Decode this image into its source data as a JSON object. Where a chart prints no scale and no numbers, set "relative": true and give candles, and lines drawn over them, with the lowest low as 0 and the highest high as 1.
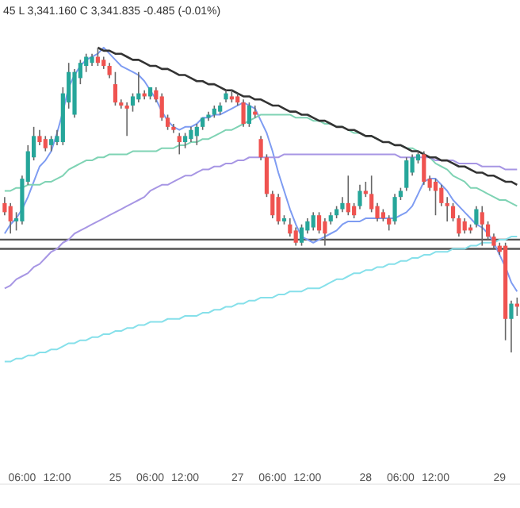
{
  "chart_data": {
    "type": "candlestick",
    "relative": true,
    "grid": false,
    "tick_labels": "x",
    "annotations": [
      "45 L 3,341.160 C 3,341.835 -0.485 (-0.01%)"
    ],
    "categories": [
      null,
      null,
      null,
      "06:00",
      null,
      null,
      null,
      null,
      null,
      "12:00",
      null,
      null,
      null,
      null,
      null,
      null,
      null,
      null,
      null,
      "25",
      null,
      null,
      null,
      null,
      null,
      "06:00",
      null,
      null,
      null,
      null,
      null,
      "12:00",
      null,
      null,
      null,
      null,
      null,
      null,
      null,
      null,
      "27",
      null,
      null,
      null,
      null,
      null,
      "06:00",
      null,
      null,
      null,
      null,
      null,
      "12:00",
      null,
      null,
      null,
      null,
      null,
      null,
      null,
      null,
      null,
      "28",
      null,
      null,
      null,
      null,
      null,
      "06:00",
      null,
      null,
      null,
      null,
      null,
      "12:00",
      null,
      null,
      null,
      null,
      null,
      null,
      null,
      null,
      null,
      null,
      "29",
      null,
      null,
      null
    ],
    "ohlc": [
      [
        0.49,
        0.51,
        0.45,
        0.46
      ],
      [
        0.48,
        0.49,
        0.39,
        0.43
      ],
      [
        0.43,
        0.46,
        0.4,
        0.44
      ],
      [
        0.43,
        0.58,
        0.42,
        0.57
      ],
      [
        0.56,
        0.68,
        0.55,
        0.66
      ],
      [
        0.64,
        0.74,
        0.63,
        0.71
      ],
      [
        0.71,
        0.73,
        0.68,
        0.69
      ],
      [
        0.7,
        0.71,
        0.66,
        0.67
      ],
      [
        0.68,
        0.71,
        0.66,
        0.7
      ],
      [
        0.69,
        0.73,
        0.68,
        0.71
      ],
      [
        0.69,
        0.87,
        0.68,
        0.85
      ],
      [
        0.82,
        0.95,
        0.8,
        0.92
      ],
      [
        0.78,
        0.93,
        0.77,
        0.92
      ],
      [
        0.9,
        0.96,
        0.88,
        0.95
      ],
      [
        0.94,
        0.98,
        0.92,
        0.97
      ],
      [
        0.95,
        0.98,
        0.94,
        0.97
      ],
      [
        0.97,
        1.0,
        0.94,
        0.95
      ],
      [
        0.96,
        0.97,
        0.93,
        0.94
      ],
      [
        0.94,
        0.95,
        0.9,
        0.91
      ],
      [
        0.88,
        0.92,
        0.81,
        0.82
      ],
      [
        0.82,
        0.83,
        0.8,
        0.81
      ],
      [
        0.81,
        0.82,
        0.71,
        0.8
      ],
      [
        0.81,
        0.85,
        0.79,
        0.84
      ],
      [
        0.83,
        0.92,
        0.82,
        0.85
      ],
      [
        0.85,
        0.86,
        0.83,
        0.84
      ],
      [
        0.84,
        0.87,
        0.83,
        0.87
      ],
      [
        0.86,
        0.87,
        0.82,
        0.83
      ],
      [
        0.84,
        0.85,
        0.76,
        0.77
      ],
      [
        0.77,
        0.78,
        0.73,
        0.74
      ],
      [
        0.74,
        0.75,
        0.72,
        0.73
      ],
      [
        0.71,
        0.72,
        0.65,
        0.69
      ],
      [
        0.69,
        0.72,
        0.67,
        0.71
      ],
      [
        0.7,
        0.74,
        0.69,
        0.73
      ],
      [
        0.71,
        0.75,
        0.68,
        0.74
      ],
      [
        0.74,
        0.77,
        0.73,
        0.77
      ],
      [
        0.77,
        0.79,
        0.76,
        0.78
      ],
      [
        0.78,
        0.81,
        0.77,
        0.8
      ],
      [
        0.79,
        0.82,
        0.78,
        0.81
      ],
      [
        0.83,
        0.86,
        0.82,
        0.85
      ],
      [
        0.84,
        0.86,
        0.82,
        0.83
      ],
      [
        0.84,
        0.85,
        0.81,
        0.82
      ],
      [
        0.82,
        0.83,
        0.74,
        0.75
      ],
      [
        0.75,
        0.82,
        0.74,
        0.81
      ],
      [
        0.79,
        0.81,
        0.77,
        0.78
      ],
      [
        0.7,
        0.71,
        0.63,
        0.64
      ],
      [
        0.64,
        0.65,
        0.51,
        0.52
      ],
      [
        0.52,
        0.53,
        0.44,
        0.45
      ],
      [
        0.51,
        0.52,
        0.42,
        0.43
      ],
      [
        0.43,
        0.45,
        0.42,
        0.44
      ],
      [
        0.42,
        0.44,
        0.38,
        0.39
      ],
      [
        0.4,
        0.41,
        0.35,
        0.36
      ],
      [
        0.36,
        0.42,
        0.35,
        0.41
      ],
      [
        0.4,
        0.44,
        0.39,
        0.43
      ],
      [
        0.41,
        0.46,
        0.4,
        0.45
      ],
      [
        0.45,
        0.46,
        0.39,
        0.4
      ],
      [
        0.43,
        0.44,
        0.35,
        0.39
      ],
      [
        0.43,
        0.46,
        0.42,
        0.45
      ],
      [
        0.45,
        0.48,
        0.44,
        0.47
      ],
      [
        0.47,
        0.51,
        0.46,
        0.49
      ],
      [
        0.49,
        0.58,
        0.45,
        0.46
      ],
      [
        0.48,
        0.49,
        0.44,
        0.45
      ],
      [
        0.48,
        0.55,
        0.47,
        0.53
      ],
      [
        0.53,
        0.56,
        0.51,
        0.52
      ],
      [
        0.52,
        0.58,
        0.46,
        0.47
      ],
      [
        0.48,
        0.49,
        0.43,
        0.44
      ],
      [
        0.46,
        0.47,
        0.43,
        0.44
      ],
      [
        0.44,
        0.45,
        0.4,
        0.42
      ],
      [
        0.43,
        0.52,
        0.42,
        0.51
      ],
      [
        0.51,
        0.54,
        0.5,
        0.53
      ],
      [
        0.54,
        0.64,
        0.53,
        0.63
      ],
      [
        0.59,
        0.65,
        0.58,
        0.64
      ],
      [
        0.63,
        0.66,
        0.62,
        0.65
      ],
      [
        0.65,
        0.66,
        0.55,
        0.56
      ],
      [
        0.57,
        0.58,
        0.53,
        0.54
      ],
      [
        0.56,
        0.57,
        0.45,
        0.53
      ],
      [
        0.54,
        0.55,
        0.48,
        0.49
      ],
      [
        0.49,
        0.51,
        0.43,
        0.48
      ],
      [
        0.48,
        0.49,
        0.43,
        0.44
      ],
      [
        0.44,
        0.45,
        0.38,
        0.39
      ],
      [
        0.43,
        0.44,
        0.39,
        0.4
      ],
      [
        0.41,
        0.42,
        0.39,
        0.4
      ],
      [
        0.42,
        0.48,
        0.41,
        0.47
      ],
      [
        0.46,
        0.48,
        0.35,
        0.42
      ],
      [
        0.42,
        0.43,
        0.37,
        0.38
      ],
      [
        0.38,
        0.39,
        0.34,
        0.35
      ],
      [
        0.35,
        0.36,
        0.32,
        0.33
      ],
      [
        0.35,
        0.36,
        0.04,
        0.11
      ],
      [
        0.11,
        0.17,
        0.0,
        0.16
      ],
      [
        0.16,
        0.18,
        0.12,
        0.15
      ]
    ],
    "colors": [
      "#ef5350",
      "#ef5350",
      "#26a69a",
      "#26a69a",
      "#26a69a",
      "#26a69a",
      "#ef5350",
      "#ef5350",
      "#26a69a",
      "#26a69a",
      "#26a69a",
      "#26a69a",
      "#26a69a",
      "#26a69a",
      "#26a69a",
      "#26a69a",
      "#ef5350",
      "#ef5350",
      "#ef5350",
      "#ef5350",
      "#ef5350",
      "#ef5350",
      "#26a69a",
      "#26a69a",
      "#ef5350",
      "#26a69a",
      "#ef5350",
      "#ef5350",
      "#ef5350",
      "#ef5350",
      "#ef5350",
      "#26a69a",
      "#26a69a",
      "#26a69a",
      "#26a69a",
      "#26a69a",
      "#26a69a",
      "#26a69a",
      "#26a69a",
      "#ef5350",
      "#ef5350",
      "#ef5350",
      "#26a69a",
      "#ef5350",
      "#ef5350",
      "#ef5350",
      "#ef5350",
      "#ef5350",
      "#26a69a",
      "#ef5350",
      "#ef5350",
      "#26a69a",
      "#26a69a",
      "#26a69a",
      "#ef5350",
      "#ef5350",
      "#26a69a",
      "#26a69a",
      "#26a69a",
      "#ef5350",
      "#ef5350",
      "#26a69a",
      "#ef5350",
      "#ef5350",
      "#ef5350",
      "#ef5350",
      "#ef5350",
      "#26a69a",
      "#26a69a",
      "#26a69a",
      "#26a69a",
      "#26a69a",
      "#ef5350",
      "#ef5350",
      "#ef5350",
      "#ef5350",
      "#ef5350",
      "#ef5350",
      "#ef5350",
      "#ef5350",
      "#ef5350",
      "#26a69a",
      "#ef5350",
      "#ef5350",
      "#ef5350",
      "#ef5350",
      "#ef5350",
      "#26a69a",
      "#ef5350"
    ],
    "series": [
      {
        "type": "line",
        "color": "#7e9cf2",
        "values": [
          0.39,
          0.42,
          0.44,
          0.47,
          0.51,
          0.56,
          0.61,
          0.63,
          0.66,
          0.72,
          0.79,
          0.87,
          0.91,
          0.94,
          0.96,
          0.97,
          0.98,
          1.0,
          0.98,
          0.96,
          0.94,
          0.93,
          0.92,
          0.91,
          0.89,
          0.86,
          0.83,
          0.79,
          0.76,
          0.74,
          0.73,
          0.74,
          0.74,
          0.75,
          0.77,
          0.77,
          0.78,
          0.78,
          0.79,
          0.8,
          0.81,
          0.82,
          0.81,
          0.8,
          0.76,
          0.72,
          0.66,
          0.59,
          0.53,
          0.47,
          0.42,
          0.38,
          0.37,
          0.36,
          0.37,
          0.38,
          0.39,
          0.4,
          0.42,
          0.43,
          0.43,
          0.43,
          0.44,
          0.44,
          0.44,
          0.44,
          0.44,
          0.44,
          0.45,
          0.46,
          0.48,
          0.52,
          0.56,
          0.57,
          0.57,
          0.55,
          0.53,
          0.5,
          0.48,
          0.46,
          0.44,
          0.42,
          0.41,
          0.39,
          0.36,
          0.32,
          0.28,
          0.23,
          0.2
        ]
      },
      {
        "type": "line",
        "color": "#7fd3b4",
        "values": [
          0.53,
          0.53,
          0.54,
          0.54,
          0.55,
          0.55,
          0.55,
          0.56,
          0.56,
          0.57,
          0.58,
          0.6,
          0.61,
          0.62,
          0.63,
          0.63,
          0.64,
          0.64,
          0.65,
          0.65,
          0.65,
          0.65,
          0.66,
          0.66,
          0.66,
          0.66,
          0.66,
          0.67,
          0.67,
          0.67,
          0.68,
          0.68,
          0.69,
          0.69,
          0.7,
          0.7,
          0.71,
          0.72,
          0.73,
          0.73,
          0.74,
          0.75,
          0.76,
          0.77,
          0.78,
          0.78,
          0.78,
          0.78,
          0.78,
          0.78,
          0.77,
          0.77,
          0.77,
          0.76,
          0.76,
          0.75,
          0.75,
          0.74,
          0.74,
          0.73,
          0.72,
          0.72,
          0.71,
          0.71,
          0.7,
          0.69,
          0.69,
          0.68,
          0.68,
          0.67,
          0.67,
          0.66,
          0.65,
          0.64,
          0.62,
          0.61,
          0.6,
          0.58,
          0.57,
          0.56,
          0.54,
          0.54,
          0.53,
          0.52,
          0.51,
          0.5,
          0.5,
          0.49,
          0.48
        ]
      },
      {
        "type": "line",
        "color": "#a796e4",
        "values": [
          0.21,
          0.22,
          0.24,
          0.25,
          0.26,
          0.28,
          0.29,
          0.31,
          0.33,
          0.34,
          0.36,
          0.37,
          0.39,
          0.4,
          0.41,
          0.42,
          0.43,
          0.44,
          0.45,
          0.46,
          0.47,
          0.48,
          0.49,
          0.5,
          0.51,
          0.53,
          0.54,
          0.55,
          0.55,
          0.56,
          0.57,
          0.58,
          0.58,
          0.59,
          0.6,
          0.6,
          0.61,
          0.61,
          0.62,
          0.62,
          0.63,
          0.63,
          0.64,
          0.64,
          0.64,
          0.64,
          0.64,
          0.64,
          0.65,
          0.65,
          0.65,
          0.65,
          0.65,
          0.65,
          0.65,
          0.65,
          0.65,
          0.65,
          0.65,
          0.65,
          0.65,
          0.65,
          0.65,
          0.65,
          0.65,
          0.65,
          0.65,
          0.65,
          0.64,
          0.64,
          0.64,
          0.64,
          0.64,
          0.64,
          0.63,
          0.63,
          0.63,
          0.63,
          0.62,
          0.62,
          0.62,
          0.62,
          0.61,
          0.61,
          0.61,
          0.61,
          0.6,
          0.6,
          0.6
        ]
      },
      {
        "type": "line",
        "color": "#86e0ea",
        "values": [
          -0.03,
          -0.03,
          -0.02,
          -0.02,
          -0.01,
          -0.01,
          0.0,
          0.0,
          0.01,
          0.01,
          0.02,
          0.03,
          0.03,
          0.04,
          0.04,
          0.05,
          0.05,
          0.06,
          0.06,
          0.07,
          0.07,
          0.08,
          0.08,
          0.09,
          0.09,
          0.1,
          0.1,
          0.1,
          0.11,
          0.11,
          0.11,
          0.12,
          0.12,
          0.12,
          0.13,
          0.13,
          0.14,
          0.14,
          0.15,
          0.15,
          0.16,
          0.16,
          0.17,
          0.17,
          0.18,
          0.18,
          0.18,
          0.19,
          0.19,
          0.2,
          0.2,
          0.2,
          0.21,
          0.21,
          0.21,
          0.22,
          0.23,
          0.24,
          0.24,
          0.25,
          0.26,
          0.26,
          0.27,
          0.27,
          0.28,
          0.28,
          0.29,
          0.29,
          0.3,
          0.3,
          0.31,
          0.31,
          0.32,
          0.32,
          0.33,
          0.33,
          0.33,
          0.34,
          0.34,
          0.34,
          0.35,
          0.35,
          0.36,
          0.36,
          0.36,
          0.37,
          0.37,
          0.38,
          0.38
        ]
      },
      {
        "type": "line",
        "color": "#333333",
        "values": [
          null,
          null,
          null,
          null,
          null,
          null,
          null,
          null,
          null,
          null,
          null,
          null,
          null,
          null,
          null,
          null,
          1.0,
          0.99,
          0.99,
          0.98,
          0.98,
          0.97,
          0.96,
          0.96,
          0.95,
          0.94,
          0.94,
          0.93,
          0.93,
          0.92,
          0.91,
          0.91,
          0.9,
          0.89,
          0.89,
          0.88,
          0.88,
          0.87,
          0.86,
          0.86,
          0.85,
          0.84,
          0.84,
          0.83,
          0.83,
          0.82,
          0.81,
          0.81,
          0.8,
          0.79,
          0.79,
          0.78,
          0.78,
          0.77,
          0.76,
          0.76,
          0.75,
          0.74,
          0.74,
          0.73,
          0.73,
          0.72,
          0.71,
          0.71,
          0.7,
          0.69,
          0.69,
          0.68,
          0.68,
          0.67,
          0.66,
          0.66,
          0.65,
          0.64,
          0.64,
          0.63,
          0.63,
          0.62,
          0.61,
          0.61,
          0.6,
          0.59,
          0.59,
          0.58,
          0.58,
          0.57,
          0.56,
          0.56,
          0.55
        ]
      }
    ],
    "ref_lines": [
      {
        "axis": "y",
        "value": 0.37,
        "color": "#555555"
      },
      {
        "axis": "y",
        "value": 0.34,
        "color": "#555555"
      }
    ]
  }
}
